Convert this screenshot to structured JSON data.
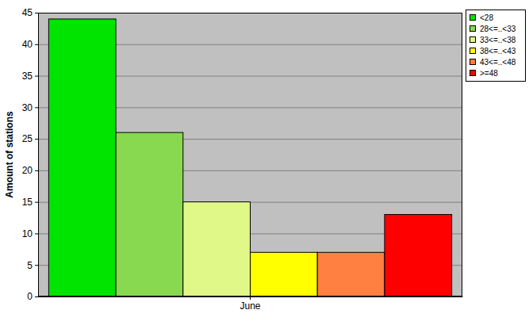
{
  "chart_data": {
    "type": "bar",
    "y_label": "Amount of stations",
    "categories": [
      "June"
    ],
    "series": [
      {
        "name": "<28",
        "color": "#00e400",
        "values": [
          44
        ]
      },
      {
        "name": "28<=..<33",
        "color": "#88d850",
        "values": [
          26
        ]
      },
      {
        "name": "33<=..<38",
        "color": "#e0f888",
        "values": [
          15
        ]
      },
      {
        "name": "38<=..<43",
        "color": "#ffff00",
        "values": [
          7
        ]
      },
      {
        "name": "43<=..<48",
        "color": "#ff8040",
        "values": [
          7
        ]
      },
      {
        "name": ">=48",
        "color": "#ff0000",
        "values": [
          13
        ]
      }
    ],
    "ylim": [
      0,
      45
    ],
    "yticks": [
      0,
      5,
      10,
      15,
      20,
      25,
      30,
      35,
      40,
      45
    ],
    "grid": true,
    "legend": "top-right"
  }
}
